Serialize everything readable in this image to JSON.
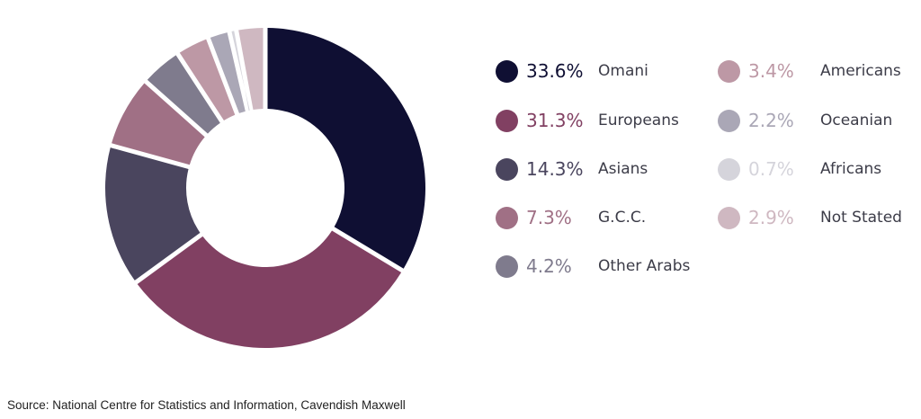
{
  "chart_data": {
    "type": "pie",
    "donut": true,
    "start_angle_deg": 0,
    "direction": "clockwise",
    "categories": [
      "Omani",
      "Europeans",
      "Asians",
      "G.C.C.",
      "Other Arabs",
      "Americans",
      "Oceanian",
      "Africans",
      "Not Stated"
    ],
    "values": [
      33.6,
      31.3,
      14.3,
      7.3,
      4.2,
      3.4,
      2.2,
      0.7,
      2.9
    ],
    "value_labels": [
      "33.6%",
      "31.3%",
      "14.3%",
      "7.3%",
      "4.2%",
      "3.4%",
      "2.2%",
      "0.7%",
      "2.9%"
    ],
    "colors": [
      "#0f0f33",
      "#814062",
      "#4a455e",
      "#a07085",
      "#7f7b8d",
      "#bd98a5",
      "#aaa7b6",
      "#d5d4db",
      "#cfb8c1"
    ],
    "legend_placement": "right, two columns",
    "source": "Source: National Centre for Statistics and Information, Cavendish Maxwell"
  }
}
